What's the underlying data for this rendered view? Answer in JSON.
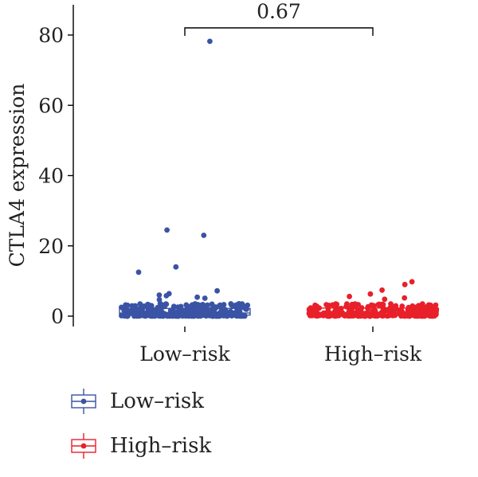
{
  "chart_data": {
    "type": "box-scatter",
    "title": "",
    "xlabel": "",
    "ylabel": "CTLA4 expression",
    "ylim": [
      -1,
      81
    ],
    "yticks": [
      0,
      20,
      40,
      60,
      80
    ],
    "categories": [
      "Low–risk",
      "High–risk"
    ],
    "comparison": {
      "groups": [
        "Low–risk",
        "High–risk"
      ],
      "p_value": "0.67"
    },
    "series": [
      {
        "name": "Low–risk",
        "color": "#3a53a4",
        "box": {
          "q1": 0.3,
          "median": 0.9,
          "q3": 2.2,
          "whisker_low": 0.0,
          "whisker_high": 2.3
        },
        "outliers": [
          78.2,
          24.5,
          23.0,
          14.0,
          12.5,
          7.2,
          6.4,
          6.0,
          5.8,
          5.4,
          5.1,
          4.7
        ]
      },
      {
        "name": "High–risk",
        "color": "#e8202a",
        "box": {
          "q1": 0.4,
          "median": 1.0,
          "q3": 2.3,
          "whisker_low": 0.0,
          "whisker_high": 2.4
        },
        "outliers": [
          9.8,
          9.0,
          7.4,
          6.3,
          5.6,
          5.2,
          4.8
        ]
      }
    ],
    "legend": {
      "position": "bottom-left",
      "entries": [
        "Low–risk",
        "High–risk"
      ]
    },
    "grid": false
  }
}
